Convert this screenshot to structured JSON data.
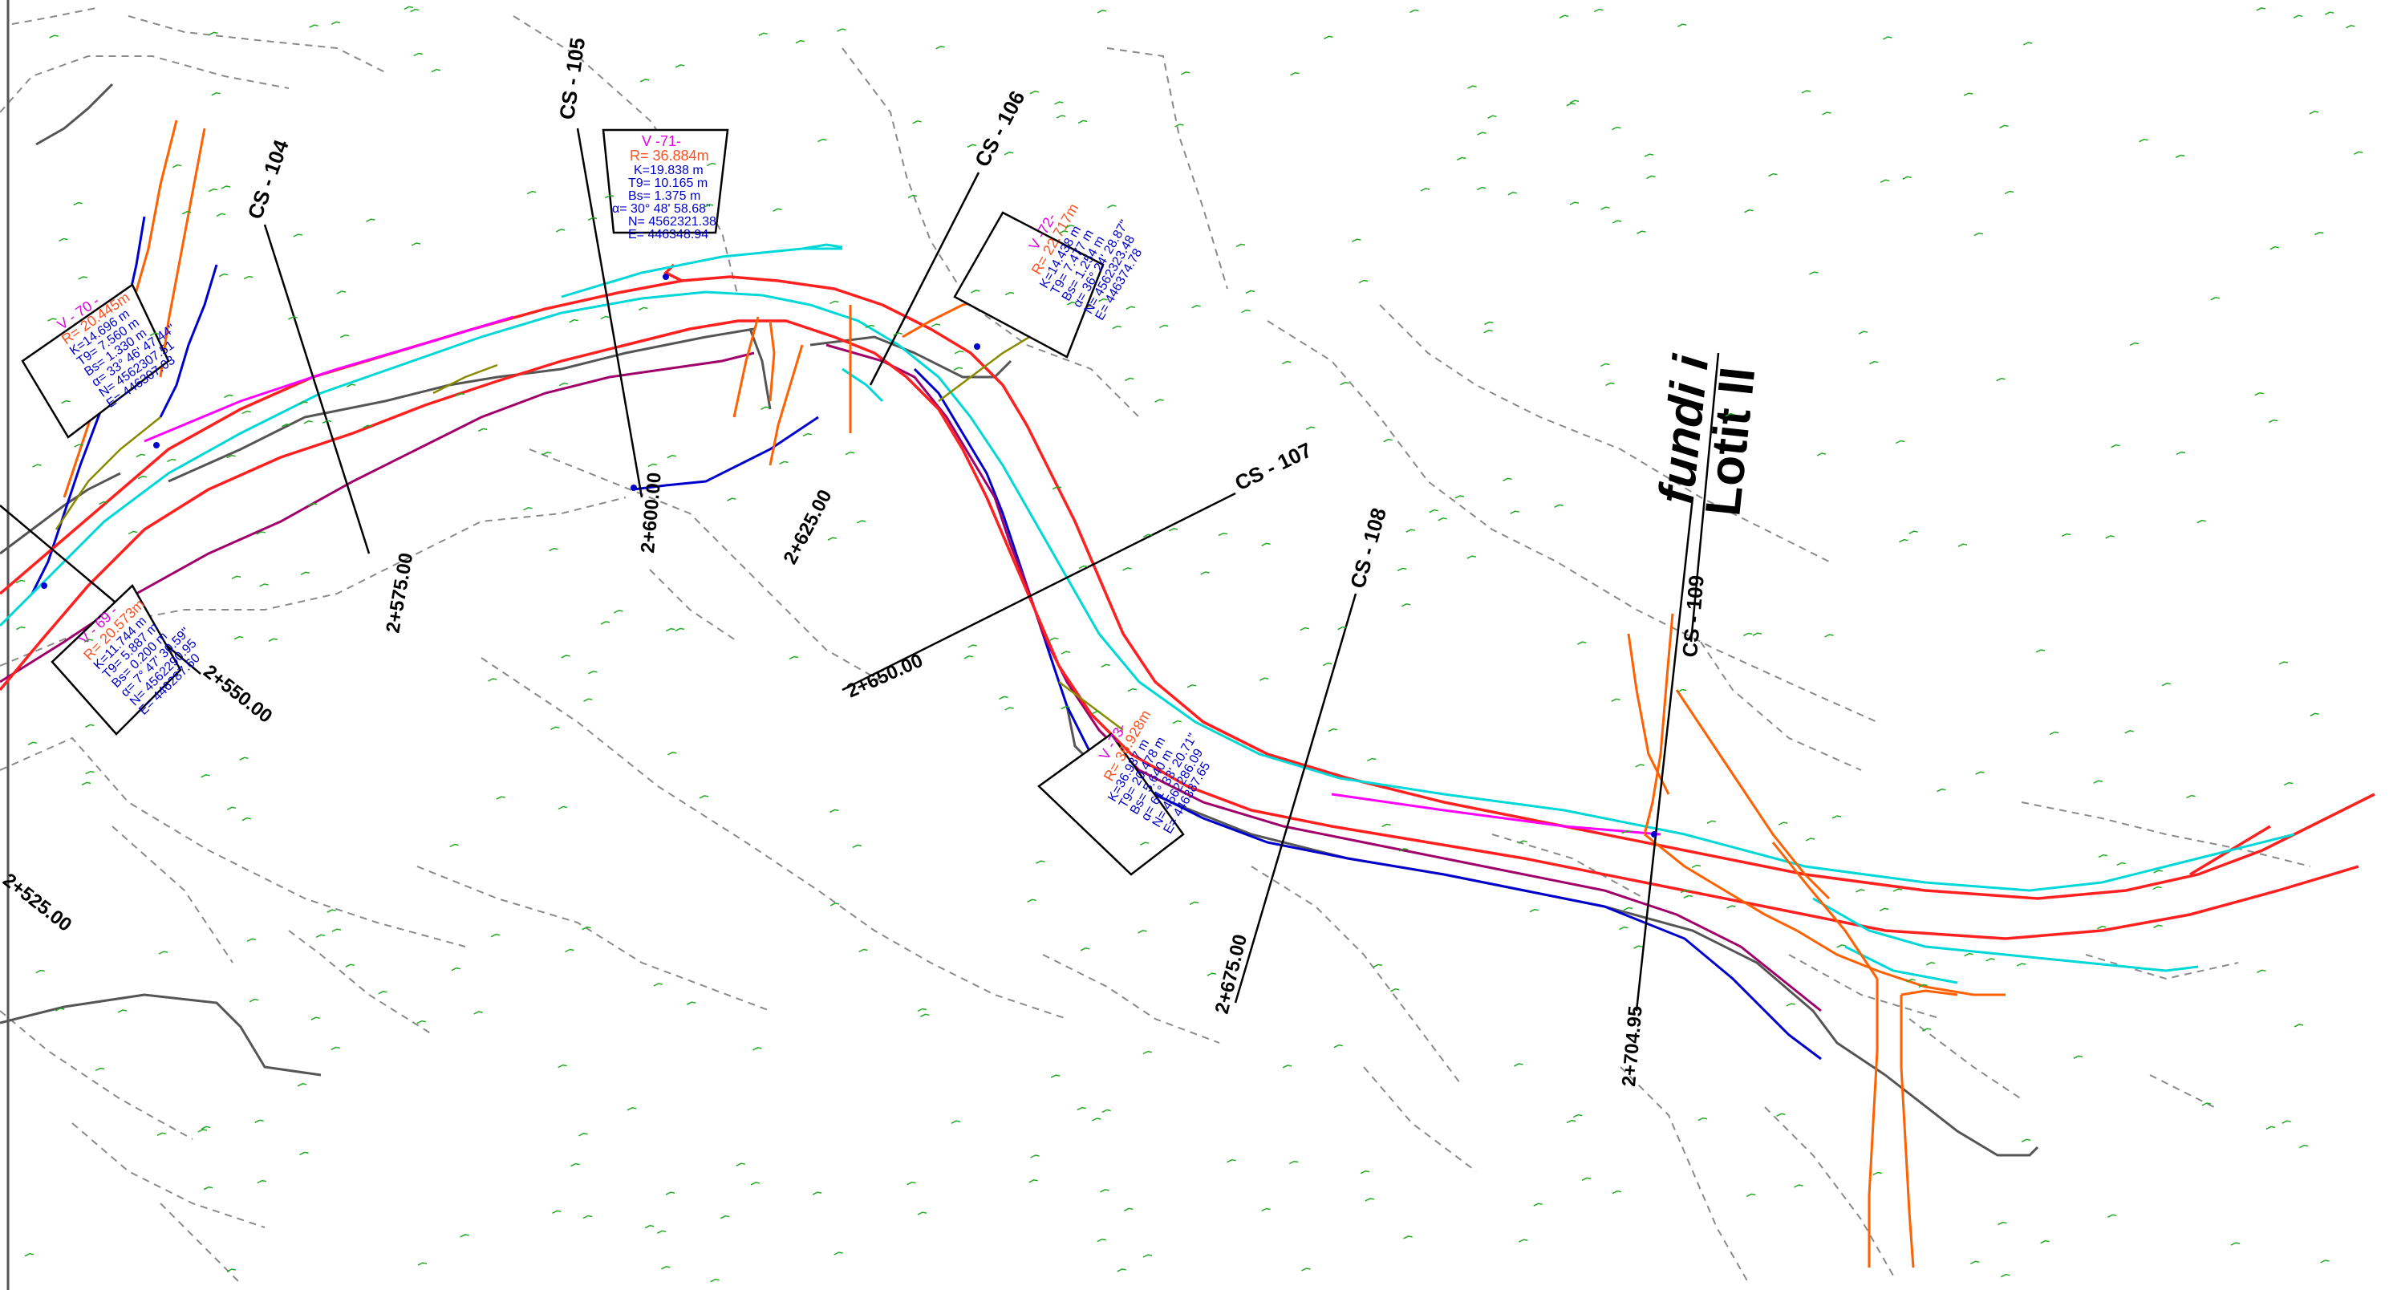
{
  "cross_sections": [
    {
      "id": "cs104",
      "label": "CS - 104"
    },
    {
      "id": "cs105",
      "label": "CS - 105"
    },
    {
      "id": "cs106",
      "label": "CS - 106"
    },
    {
      "id": "cs107",
      "label": "CS - 107"
    },
    {
      "id": "cs108",
      "label": "CS - 108"
    },
    {
      "id": "cs109",
      "label": "CS - 109"
    }
  ],
  "stations": [
    {
      "id": "s525",
      "label": "2+525.00"
    },
    {
      "id": "s550",
      "label": "2+550.00"
    },
    {
      "id": "s575",
      "label": "2+575.00"
    },
    {
      "id": "s600",
      "label": "2+600.00"
    },
    {
      "id": "s625",
      "label": "2+625.00"
    },
    {
      "id": "s650",
      "label": "2+650.00"
    },
    {
      "id": "s675",
      "label": "2+675.00"
    },
    {
      "id": "s704",
      "label": "2+704.95"
    }
  ],
  "vertex_boxes": {
    "v70": {
      "title": "V - 70 -",
      "lines": [
        "R= 20.445m",
        "K=14.696 m",
        "T9= 7.560 m",
        "Bs= 1.330 m",
        "α= 33° 46' 47.44\"",
        "N= 4562307.51",
        "E= 446307.03"
      ]
    },
    "v69": {
      "title": "V - 69 -",
      "lines": [
        "R= 20.573m",
        "K=11.744 m",
        "T9= 5.887 m",
        "Bs= 0.200 m",
        "α= 7° 47' 30.59\"",
        "N= 4562290.95",
        "E= 446287.60"
      ]
    },
    "v71": {
      "title": "V -71-",
      "lines": [
        "R= 36.884m",
        "K=19.838 m",
        "T9= 10.165 m",
        "Bs= 1.375 m",
        "α= 30° 48' 58.68\"",
        "N= 4562321.38",
        "E= 446348.94"
      ]
    },
    "v72": {
      "title": "V -72-",
      "lines": [
        "R= 22.717m",
        "K=14.438 m",
        "T9= 7.477 m",
        "Bs= 1.254 m",
        "α= 36° 24' 28.87\"",
        "N= 4562323.48",
        "E= 446374.78"
      ]
    },
    "v73": {
      "title": "V -73-",
      "lines": [
        "R= 36.928m",
        "K=36.937 m",
        "T9= 20.478 m",
        "Bs= 5.640 m",
        "α= 61° 33' 20.71\"",
        "N= 4562286.09",
        "E= 446387.65"
      ]
    }
  },
  "lot_label": {
    "line1": "fundi i",
    "line2": "Lotit II"
  },
  "colors": {
    "road_edge": "#ff2020",
    "centerline": "#00e0e0",
    "river_blue": "#0000cc",
    "purple": "#a0006a",
    "magenta": "#ff00ff",
    "orange_channel": "#ff6000",
    "contour": "#888888",
    "terrain_mark": "#22aa22",
    "dark_grey": "#555555"
  }
}
